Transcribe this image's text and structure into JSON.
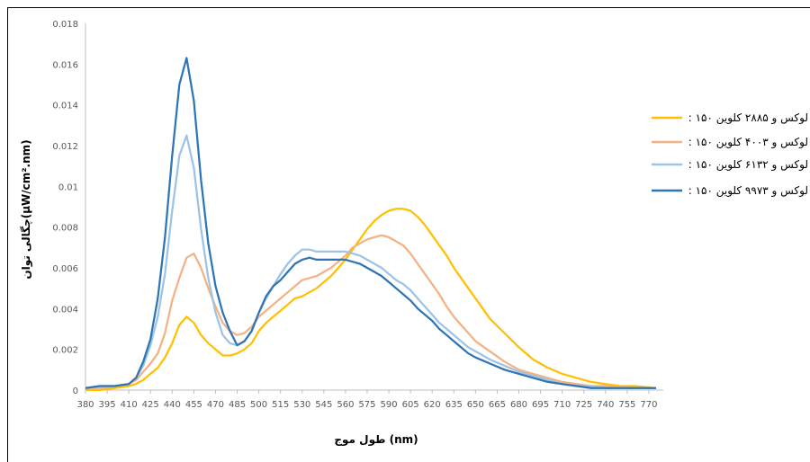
{
  "chart_data": {
    "type": "line",
    "title": "",
    "xlabel": "طول موج (nm)",
    "ylabel": "چگالی توان(µW/cm².nm)",
    "ylim": [
      0,
      0.018
    ],
    "yticks": [
      "0",
      "0.002",
      "0.004",
      "0.006",
      "0.008",
      "0.01",
      "0.012",
      "0.014",
      "0.016",
      "0.018"
    ],
    "x_range": [
      380,
      780
    ],
    "xticks": [
      "380",
      "395",
      "410",
      "425",
      "440",
      "455",
      "470",
      "485",
      "500",
      "515",
      "530",
      "545",
      "560",
      "575",
      "590",
      "605",
      "620",
      "635",
      "650",
      "665",
      "680",
      "695",
      "710",
      "725",
      "740",
      "755",
      "770"
    ],
    "grid": false,
    "legend_position": "right",
    "series": [
      {
        "name": ": ۱۵۰ لوکس و ۲۸۸۵ کلوین",
        "color": "#FFC000",
        "points": [
          [
            380,
            0
          ],
          [
            390,
            0
          ],
          [
            400,
            0.0001
          ],
          [
            410,
            0.0002
          ],
          [
            415,
            0.0003
          ],
          [
            420,
            0.0005
          ],
          [
            425,
            0.0008
          ],
          [
            430,
            0.0011
          ],
          [
            435,
            0.0016
          ],
          [
            440,
            0.0023
          ],
          [
            445,
            0.0032
          ],
          [
            450,
            0.0036
          ],
          [
            455,
            0.0033
          ],
          [
            460,
            0.0027
          ],
          [
            465,
            0.0023
          ],
          [
            470,
            0.002
          ],
          [
            475,
            0.0017
          ],
          [
            480,
            0.0017
          ],
          [
            485,
            0.0018
          ],
          [
            490,
            0.002
          ],
          [
            495,
            0.0023
          ],
          [
            500,
            0.0029
          ],
          [
            505,
            0.0033
          ],
          [
            510,
            0.0036
          ],
          [
            515,
            0.0039
          ],
          [
            520,
            0.0042
          ],
          [
            525,
            0.0045
          ],
          [
            530,
            0.0046
          ],
          [
            535,
            0.0048
          ],
          [
            540,
            0.005
          ],
          [
            545,
            0.0053
          ],
          [
            550,
            0.0056
          ],
          [
            555,
            0.006
          ],
          [
            560,
            0.0064
          ],
          [
            565,
            0.0069
          ],
          [
            570,
            0.0074
          ],
          [
            575,
            0.0079
          ],
          [
            580,
            0.0083
          ],
          [
            585,
            0.0086
          ],
          [
            590,
            0.0088
          ],
          [
            595,
            0.0089
          ],
          [
            600,
            0.0089
          ],
          [
            605,
            0.0088
          ],
          [
            610,
            0.0085
          ],
          [
            615,
            0.0081
          ],
          [
            620,
            0.0076
          ],
          [
            625,
            0.0071
          ],
          [
            630,
            0.0066
          ],
          [
            635,
            0.006
          ],
          [
            640,
            0.0055
          ],
          [
            645,
            0.005
          ],
          [
            650,
            0.0045
          ],
          [
            655,
            0.004
          ],
          [
            660,
            0.0035
          ],
          [
            670,
            0.0028
          ],
          [
            680,
            0.0021
          ],
          [
            690,
            0.0015
          ],
          [
            700,
            0.0011
          ],
          [
            710,
            0.0008
          ],
          [
            720,
            0.0006
          ],
          [
            730,
            0.0004
          ],
          [
            740,
            0.0003
          ],
          [
            750,
            0.0002
          ],
          [
            760,
            0.0002
          ],
          [
            775,
            0.0001
          ]
        ]
      },
      {
        "name": ": ۱۵۰ لوکس و ۴۰۰۳ کلوین",
        "color": "#F4B183",
        "points": [
          [
            380,
            0.0001
          ],
          [
            390,
            0.0001
          ],
          [
            400,
            0.0002
          ],
          [
            410,
            0.0003
          ],
          [
            415,
            0.0005
          ],
          [
            420,
            0.0009
          ],
          [
            425,
            0.0013
          ],
          [
            430,
            0.0018
          ],
          [
            435,
            0.0028
          ],
          [
            440,
            0.0044
          ],
          [
            445,
            0.0055
          ],
          [
            450,
            0.0065
          ],
          [
            455,
            0.0067
          ],
          [
            460,
            0.006
          ],
          [
            465,
            0.005
          ],
          [
            470,
            0.0041
          ],
          [
            475,
            0.0033
          ],
          [
            480,
            0.0029
          ],
          [
            485,
            0.0027
          ],
          [
            490,
            0.0028
          ],
          [
            495,
            0.0031
          ],
          [
            500,
            0.0036
          ],
          [
            505,
            0.0039
          ],
          [
            510,
            0.0042
          ],
          [
            515,
            0.0045
          ],
          [
            520,
            0.0048
          ],
          [
            525,
            0.0051
          ],
          [
            530,
            0.0054
          ],
          [
            535,
            0.0055
          ],
          [
            540,
            0.0056
          ],
          [
            545,
            0.0058
          ],
          [
            550,
            0.006
          ],
          [
            555,
            0.0063
          ],
          [
            560,
            0.0066
          ],
          [
            565,
            0.007
          ],
          [
            570,
            0.0072
          ],
          [
            575,
            0.0074
          ],
          [
            580,
            0.0075
          ],
          [
            585,
            0.0076
          ],
          [
            590,
            0.0075
          ],
          [
            595,
            0.0073
          ],
          [
            600,
            0.0071
          ],
          [
            605,
            0.0067
          ],
          [
            610,
            0.0062
          ],
          [
            615,
            0.0057
          ],
          [
            620,
            0.0052
          ],
          [
            625,
            0.0047
          ],
          [
            630,
            0.0041
          ],
          [
            635,
            0.0036
          ],
          [
            640,
            0.0032
          ],
          [
            645,
            0.0028
          ],
          [
            650,
            0.0024
          ],
          [
            660,
            0.0019
          ],
          [
            670,
            0.0014
          ],
          [
            680,
            0.001
          ],
          [
            690,
            0.0008
          ],
          [
            700,
            0.0006
          ],
          [
            710,
            0.0004
          ],
          [
            720,
            0.0003
          ],
          [
            730,
            0.0002
          ],
          [
            740,
            0.0002
          ],
          [
            760,
            0.0001
          ],
          [
            775,
            0.0001
          ]
        ]
      },
      {
        "name": ": ۱۵۰ لوکس و ۶۱۳۲ کلوین",
        "color": "#9DC3E6",
        "points": [
          [
            380,
            0.0001
          ],
          [
            390,
            0.0002
          ],
          [
            400,
            0.0002
          ],
          [
            410,
            0.0003
          ],
          [
            415,
            0.0006
          ],
          [
            420,
            0.0012
          ],
          [
            425,
            0.0022
          ],
          [
            430,
            0.0036
          ],
          [
            435,
            0.0057
          ],
          [
            440,
            0.0088
          ],
          [
            445,
            0.0115
          ],
          [
            450,
            0.0125
          ],
          [
            455,
            0.0109
          ],
          [
            460,
            0.0079
          ],
          [
            465,
            0.0055
          ],
          [
            470,
            0.0038
          ],
          [
            475,
            0.0027
          ],
          [
            480,
            0.0023
          ],
          [
            485,
            0.0022
          ],
          [
            490,
            0.0024
          ],
          [
            495,
            0.0029
          ],
          [
            500,
            0.0038
          ],
          [
            505,
            0.0045
          ],
          [
            510,
            0.0051
          ],
          [
            515,
            0.0057
          ],
          [
            520,
            0.0062
          ],
          [
            525,
            0.0066
          ],
          [
            530,
            0.0069
          ],
          [
            535,
            0.0069
          ],
          [
            540,
            0.0068
          ],
          [
            545,
            0.0068
          ],
          [
            550,
            0.0068
          ],
          [
            555,
            0.0068
          ],
          [
            560,
            0.0068
          ],
          [
            565,
            0.0067
          ],
          [
            570,
            0.0066
          ],
          [
            575,
            0.0064
          ],
          [
            580,
            0.0062
          ],
          [
            585,
            0.006
          ],
          [
            590,
            0.0057
          ],
          [
            595,
            0.0054
          ],
          [
            600,
            0.0052
          ],
          [
            605,
            0.0049
          ],
          [
            610,
            0.0045
          ],
          [
            615,
            0.0041
          ],
          [
            620,
            0.0037
          ],
          [
            625,
            0.0033
          ],
          [
            630,
            0.003
          ],
          [
            635,
            0.0027
          ],
          [
            640,
            0.0024
          ],
          [
            645,
            0.0021
          ],
          [
            650,
            0.0019
          ],
          [
            660,
            0.0015
          ],
          [
            670,
            0.0012
          ],
          [
            680,
            0.0009
          ],
          [
            690,
            0.0007
          ],
          [
            700,
            0.0005
          ],
          [
            710,
            0.0003
          ],
          [
            720,
            0.0002
          ],
          [
            730,
            0.0002
          ],
          [
            740,
            0.0001
          ],
          [
            760,
            0.0001
          ],
          [
            775,
            0.0001
          ]
        ]
      },
      {
        "name": ": ۱۵۰ لوکس و ۹۹۷۳ کلوین",
        "color": "#2E75B6",
        "points": [
          [
            380,
            0.0001
          ],
          [
            390,
            0.0002
          ],
          [
            400,
            0.0002
          ],
          [
            410,
            0.0003
          ],
          [
            415,
            0.0006
          ],
          [
            420,
            0.0014
          ],
          [
            425,
            0.0025
          ],
          [
            430,
            0.0045
          ],
          [
            435,
            0.0075
          ],
          [
            440,
            0.0115
          ],
          [
            445,
            0.015
          ],
          [
            450,
            0.0163
          ],
          [
            455,
            0.0142
          ],
          [
            460,
            0.0103
          ],
          [
            465,
            0.0072
          ],
          [
            470,
            0.0051
          ],
          [
            475,
            0.0038
          ],
          [
            480,
            0.0029
          ],
          [
            485,
            0.0022
          ],
          [
            490,
            0.0024
          ],
          [
            495,
            0.0029
          ],
          [
            500,
            0.0038
          ],
          [
            505,
            0.0046
          ],
          [
            510,
            0.0051
          ],
          [
            515,
            0.0054
          ],
          [
            520,
            0.0058
          ],
          [
            525,
            0.0062
          ],
          [
            530,
            0.0064
          ],
          [
            535,
            0.0065
          ],
          [
            540,
            0.0064
          ],
          [
            545,
            0.0064
          ],
          [
            550,
            0.0064
          ],
          [
            555,
            0.0064
          ],
          [
            560,
            0.0064
          ],
          [
            565,
            0.0063
          ],
          [
            570,
            0.0062
          ],
          [
            575,
            0.006
          ],
          [
            580,
            0.0058
          ],
          [
            585,
            0.0056
          ],
          [
            590,
            0.0053
          ],
          [
            595,
            0.005
          ],
          [
            600,
            0.0047
          ],
          [
            605,
            0.0044
          ],
          [
            610,
            0.004
          ],
          [
            615,
            0.0037
          ],
          [
            620,
            0.0034
          ],
          [
            625,
            0.003
          ],
          [
            630,
            0.0027
          ],
          [
            635,
            0.0024
          ],
          [
            640,
            0.0021
          ],
          [
            645,
            0.0018
          ],
          [
            650,
            0.0016
          ],
          [
            660,
            0.0013
          ],
          [
            670,
            0.001
          ],
          [
            680,
            0.0008
          ],
          [
            690,
            0.0006
          ],
          [
            700,
            0.0004
          ],
          [
            710,
            0.0003
          ],
          [
            720,
            0.0002
          ],
          [
            730,
            0.0001
          ],
          [
            740,
            0.0001
          ],
          [
            760,
            0.0001
          ],
          [
            775,
            0.0001
          ]
        ]
      }
    ]
  }
}
